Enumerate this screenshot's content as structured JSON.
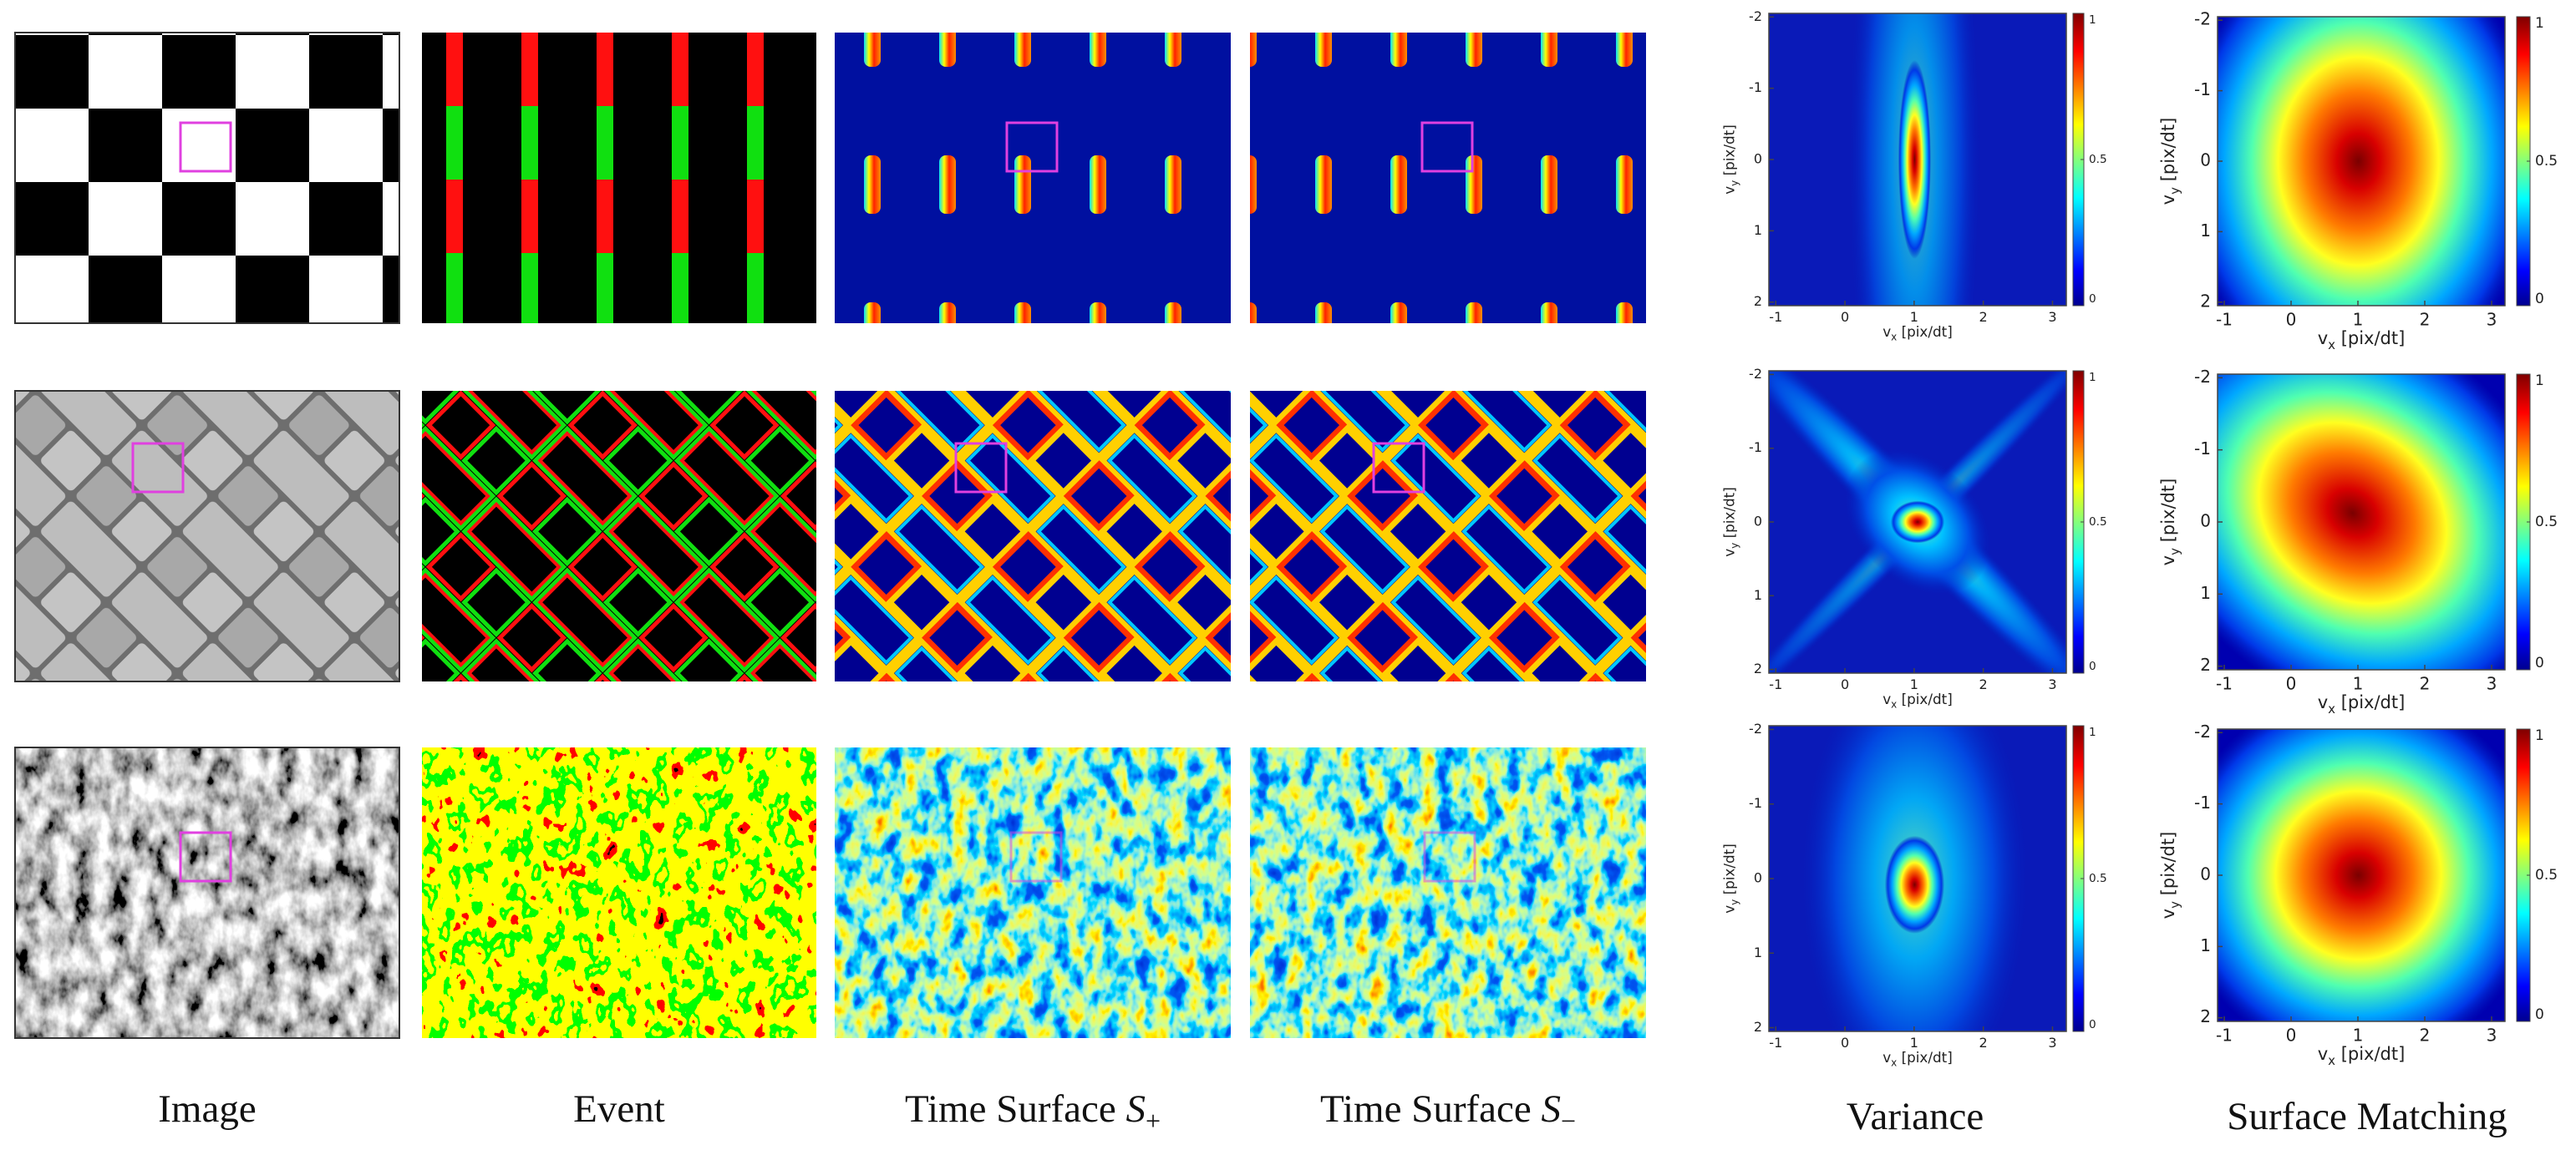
{
  "columns": {
    "image": "Image",
    "event": "Event",
    "ts_plus": {
      "text": "Time Surface",
      "symbol": "S",
      "sub": "+"
    },
    "ts_minus": {
      "text": "Time Surface",
      "symbol": "S",
      "sub": "−"
    },
    "variance": "Variance",
    "surface_matching": "Surface Matching"
  },
  "variance": [
    {
      "xlim": [
        -1.1,
        3.2
      ],
      "ylim": [
        -2.05,
        2.05
      ],
      "xticks": [
        -1,
        0,
        1,
        2,
        3
      ],
      "yticks": [
        -2,
        -1,
        0,
        1,
        2
      ],
      "cbar_lim": [
        0,
        1
      ],
      "cbar_ticks": [
        0,
        0.5,
        1
      ],
      "xlabel": {
        "symbol": "v",
        "sub": "x",
        "unit": "[pix/dt]"
      },
      "ylabel": {
        "symbol": "v",
        "sub": "y",
        "unit": "[pix/dt]"
      }
    },
    {
      "xlim": [
        -1.1,
        3.2
      ],
      "ylim": [
        -2.05,
        2.05
      ],
      "xticks": [
        -1,
        0,
        1,
        2,
        3
      ],
      "yticks": [
        -2,
        -1,
        0,
        1,
        2
      ],
      "cbar_lim": [
        0,
        1
      ],
      "cbar_ticks": [
        0,
        0.5,
        1
      ],
      "xlabel": {
        "symbol": "v",
        "sub": "x",
        "unit": "[pix/dt]"
      },
      "ylabel": {
        "symbol": "v",
        "sub": "y",
        "unit": "[pix/dt]"
      }
    },
    {
      "xlim": [
        -1.1,
        3.2
      ],
      "ylim": [
        -2.05,
        2.05
      ],
      "xticks": [
        -1,
        0,
        1,
        2,
        3
      ],
      "yticks": [
        -2,
        -1,
        0,
        1,
        2
      ],
      "cbar_lim": [
        0,
        1
      ],
      "cbar_ticks": [
        0,
        0.5,
        1
      ],
      "xlabel": {
        "symbol": "v",
        "sub": "x",
        "unit": "[pix/dt]"
      },
      "ylabel": {
        "symbol": "v",
        "sub": "y",
        "unit": "[pix/dt]"
      }
    }
  ],
  "surface_matching": [
    {
      "xlim": [
        -1.1,
        3.2
      ],
      "ylim": [
        -2.05,
        2.05
      ],
      "xticks": [
        -1,
        0,
        1,
        2,
        3
      ],
      "yticks": [
        -2,
        -1,
        0,
        1,
        2
      ],
      "cbar_lim": [
        0,
        1
      ],
      "cbar_ticks": [
        0,
        0.5,
        1
      ],
      "xlabel": {
        "symbol": "v",
        "sub": "x",
        "unit": "[pix/dt]"
      },
      "ylabel": {
        "symbol": "v",
        "sub": "y",
        "unit": "[pix/dt]"
      }
    },
    {
      "xlim": [
        -1.1,
        3.2
      ],
      "ylim": [
        -2.05,
        2.05
      ],
      "xticks": [
        -1,
        0,
        1,
        2,
        3
      ],
      "yticks": [
        -2,
        -1,
        0,
        1,
        2
      ],
      "cbar_lim": [
        0,
        1
      ],
      "cbar_ticks": [
        0,
        0.5,
        1
      ],
      "xlabel": {
        "symbol": "v",
        "sub": "x",
        "unit": "[pix/dt]"
      },
      "ylabel": {
        "symbol": "v",
        "sub": "y",
        "unit": "[pix/dt]"
      }
    },
    {
      "xlim": [
        -1.1,
        3.2
      ],
      "ylim": [
        -2.05,
        2.05
      ],
      "xticks": [
        -1,
        0,
        1,
        2,
        3
      ],
      "yticks": [
        -2,
        -1,
        0,
        1,
        2
      ],
      "cbar_lim": [
        0,
        1
      ],
      "cbar_ticks": [
        0,
        0.5,
        1
      ],
      "xlabel": {
        "symbol": "v",
        "sub": "x",
        "unit": "[pix/dt]"
      },
      "ylabel": {
        "symbol": "v",
        "sub": "y",
        "unit": "[pix/dt]"
      }
    }
  ]
}
